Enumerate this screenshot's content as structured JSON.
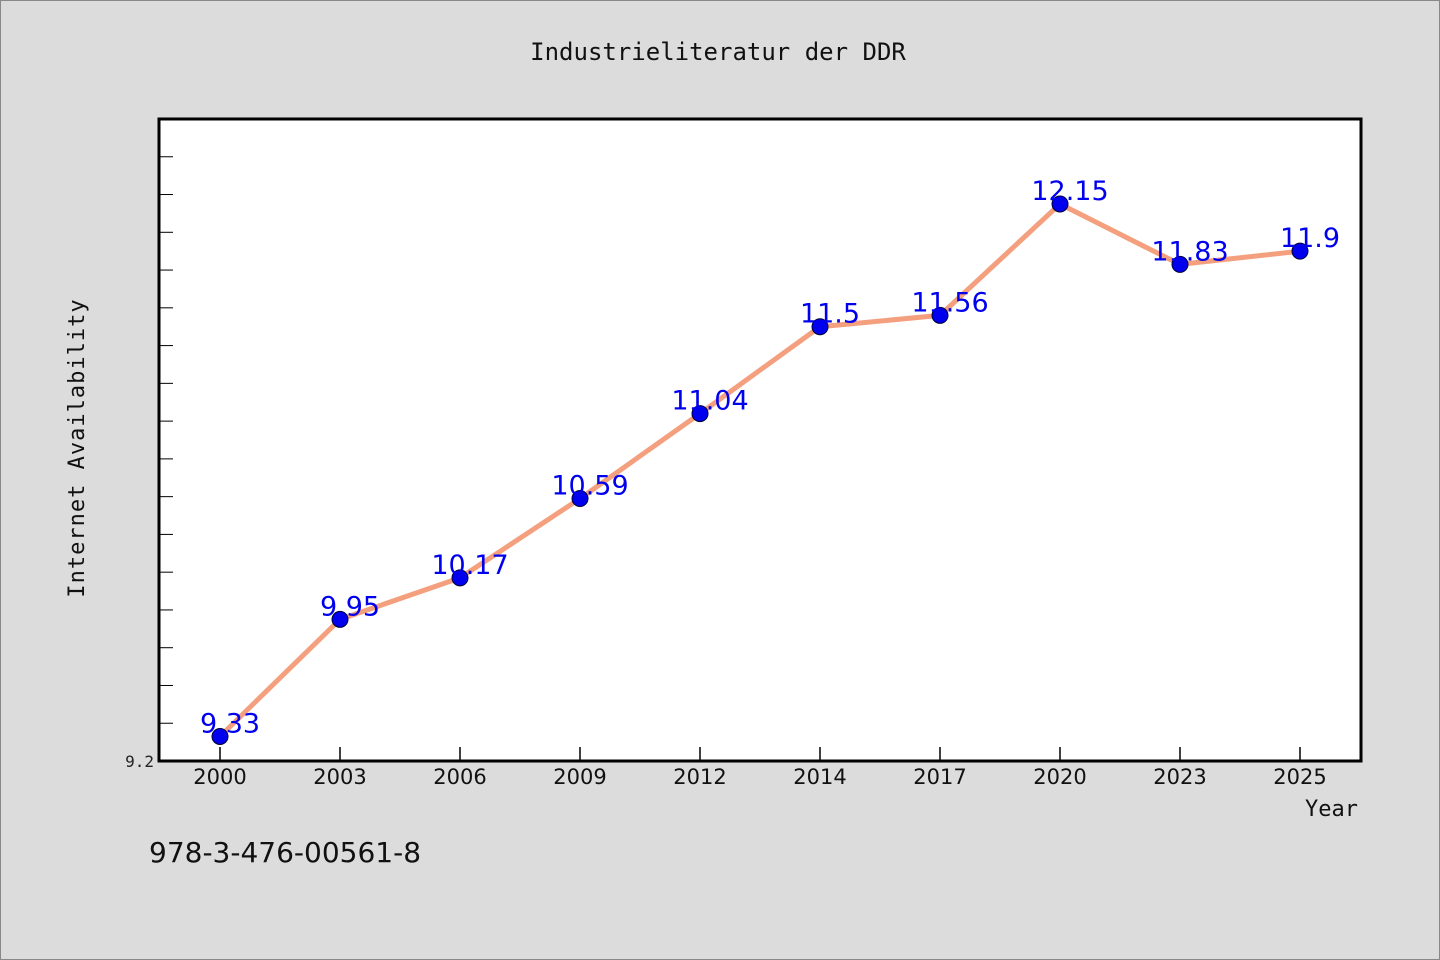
{
  "chart_data": {
    "type": "line",
    "title": "Industrieliteratur der DDR",
    "xlabel": "Year",
    "ylabel": "Internet Availability",
    "x": [
      "2000",
      "2003",
      "2006",
      "2009",
      "2012",
      "2014",
      "2017",
      "2020",
      "2023",
      "2025"
    ],
    "series": [
      {
        "values": [
          9.33,
          9.95,
          10.17,
          10.59,
          11.04,
          11.5,
          11.56,
          12.15,
          11.83,
          11.9
        ],
        "labels": [
          "9.33",
          "9.95",
          "10.17",
          "10.59",
          "11.04",
          "11.5",
          "11.56",
          "12.15",
          "11.83",
          "11.9"
        ],
        "line_color": "#f4a07e",
        "marker_color": "#0000ee"
      }
    ],
    "y_tick_labels": [
      "9.2"
    ],
    "ylim": [
      9.2,
      12.6
    ],
    "grid": false,
    "background": "#dcdcdc",
    "plot_background": "#ffffff",
    "label_color": "#0000ee"
  },
  "footer": {
    "isbn": "978-3-476-00561-8"
  }
}
